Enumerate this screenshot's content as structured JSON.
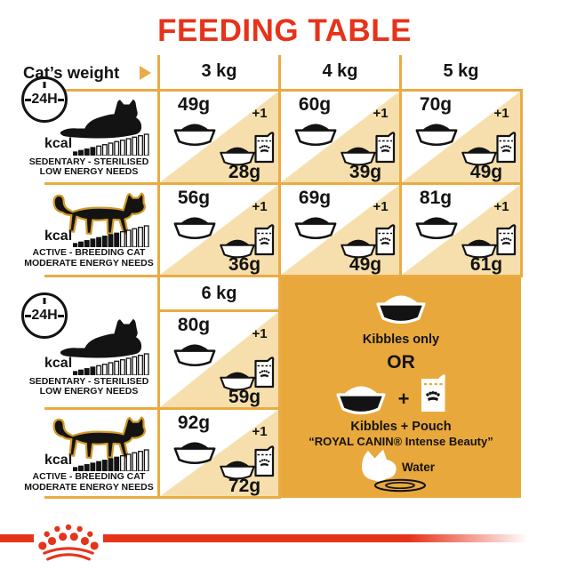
{
  "title": "FEEDING TABLE",
  "colors": {
    "red": "#E6331A",
    "gold": "#EAAB44",
    "panel_orange": "#E9A83C",
    "tan": "#F6DFAC",
    "ink": "#131313"
  },
  "header": {
    "weight_label": "Cat’s weight",
    "col_3kg": "3 kg",
    "col_4kg": "4 kg",
    "col_5kg": "5 kg",
    "col_6kg": "6 kg"
  },
  "badge_24h": "24H",
  "profiles": {
    "sedentary": {
      "kcal_label": "kcal",
      "caption_line1": "SEDENTARY - STERILISED",
      "caption_line2": "LOW ENERGY NEEDS",
      "energy_bars": {
        "total": 13,
        "filled": 4
      }
    },
    "active": {
      "kcal_label": "kcal",
      "caption_line1": "ACTIVE - BREEDING CAT",
      "caption_line2": "MODERATE ENERGY NEEDS",
      "energy_bars": {
        "total": 13,
        "filled": 8
      }
    }
  },
  "cells": {
    "sed_3kg": {
      "kibbles_only_g": "49g",
      "plus_badge": "+1",
      "kibbles_plus_pouch_g": "28g"
    },
    "sed_4kg": {
      "kibbles_only_g": "60g",
      "plus_badge": "+1",
      "kibbles_plus_pouch_g": "39g"
    },
    "sed_5kg": {
      "kibbles_only_g": "70g",
      "plus_badge": "+1",
      "kibbles_plus_pouch_g": "49g"
    },
    "act_3kg": {
      "kibbles_only_g": "56g",
      "plus_badge": "+1",
      "kibbles_plus_pouch_g": "36g"
    },
    "act_4kg": {
      "kibbles_only_g": "69g",
      "plus_badge": "+1",
      "kibbles_plus_pouch_g": "49g"
    },
    "act_5kg": {
      "kibbles_only_g": "81g",
      "plus_badge": "+1",
      "kibbles_plus_pouch_g": "61g"
    },
    "sed_6kg": {
      "kibbles_only_g": "80g",
      "plus_badge": "+1",
      "kibbles_plus_pouch_g": "59g"
    },
    "act_6kg": {
      "kibbles_only_g": "92g",
      "plus_badge": "+1",
      "kibbles_plus_pouch_g": "72g"
    }
  },
  "feeding_options_panel": {
    "kibbles_only_label": "Kibbles only",
    "or_label": "OR",
    "plus_sign": "+",
    "kibbles_pouch_label_line1": "Kibbles + Pouch",
    "kibbles_pouch_label_line2": "“ROYAL CANIN® Intense Beauty”",
    "water_label": "Water"
  }
}
